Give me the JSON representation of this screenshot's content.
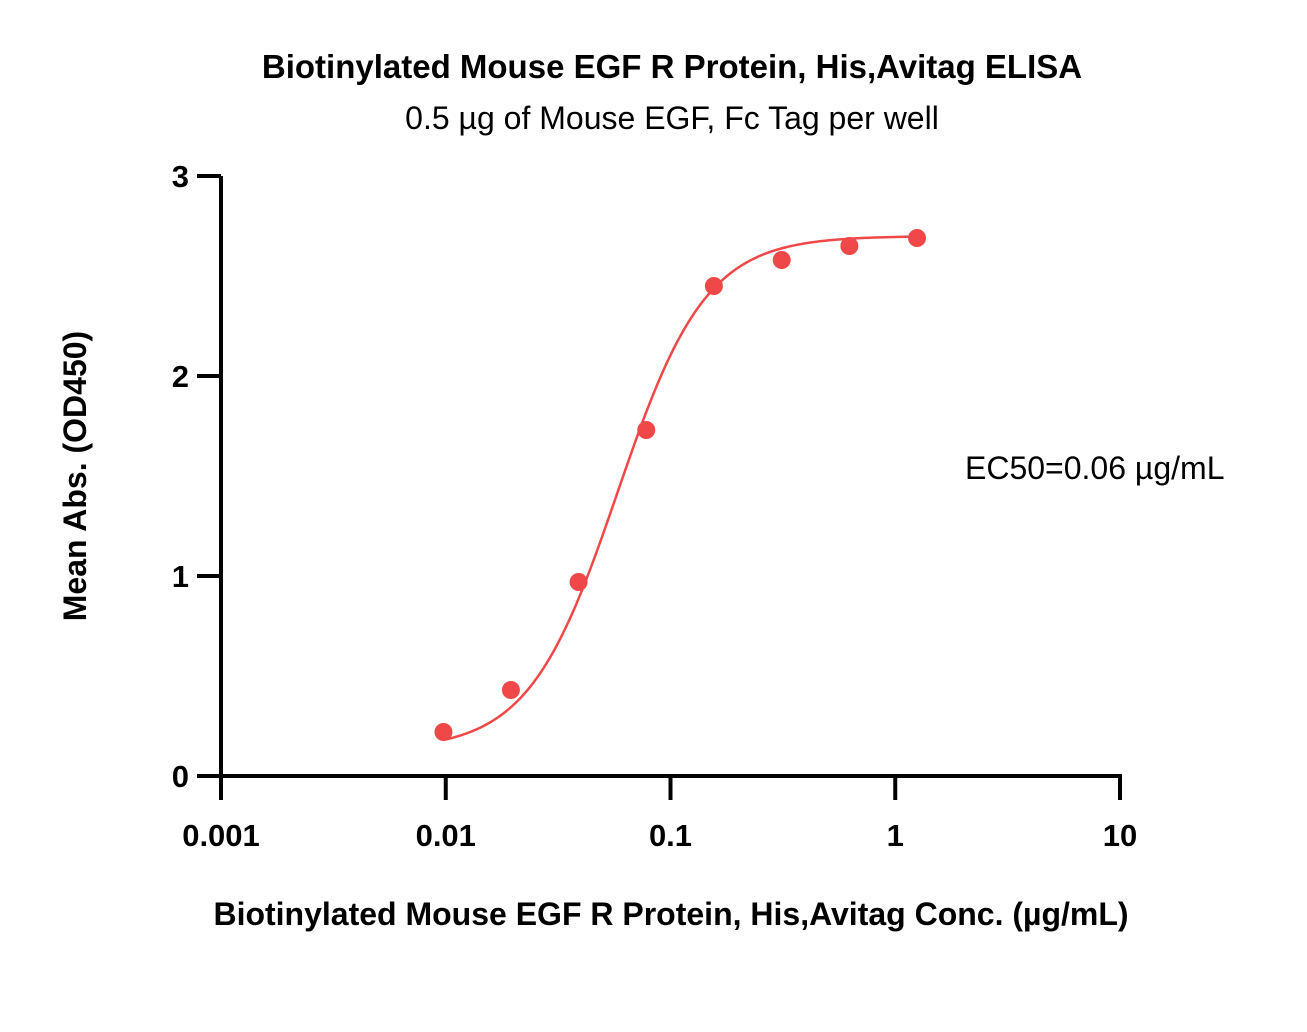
{
  "chart_data": {
    "type": "scatter",
    "title": "Biotinylated Mouse EGF R Protein, His,Avitag ELISA",
    "subtitle": "0.5 µg of Mouse EGF, Fc Tag per well",
    "xlabel": "Biotinylated Mouse EGF R Protein, His,Avitag Conc. (µg/mL)",
    "ylabel": "Mean Abs. (OD450)",
    "xscale": "log",
    "xlim": [
      0.001,
      10
    ],
    "ylim": [
      0,
      3
    ],
    "xticks": [
      0.001,
      0.01,
      0.1,
      1,
      10
    ],
    "xtick_labels": [
      "0.001",
      "0.01",
      "0.1",
      "1",
      "10"
    ],
    "yticks": [
      0,
      1,
      2,
      3
    ],
    "ytick_labels": [
      "0",
      "1",
      "2",
      "3"
    ],
    "grid": false,
    "series": [
      {
        "color": "#f04848",
        "x": [
          0.00977,
          0.0195,
          0.039,
          0.078,
          0.156,
          0.3125,
          0.625,
          1.25
        ],
        "y": [
          0.22,
          0.43,
          0.97,
          1.73,
          2.45,
          2.58,
          2.65,
          2.69
        ],
        "fit": "4PL"
      }
    ],
    "annotations": [
      {
        "text": "EC50=0.06 µg/mL",
        "position": "right-middle"
      }
    ]
  }
}
